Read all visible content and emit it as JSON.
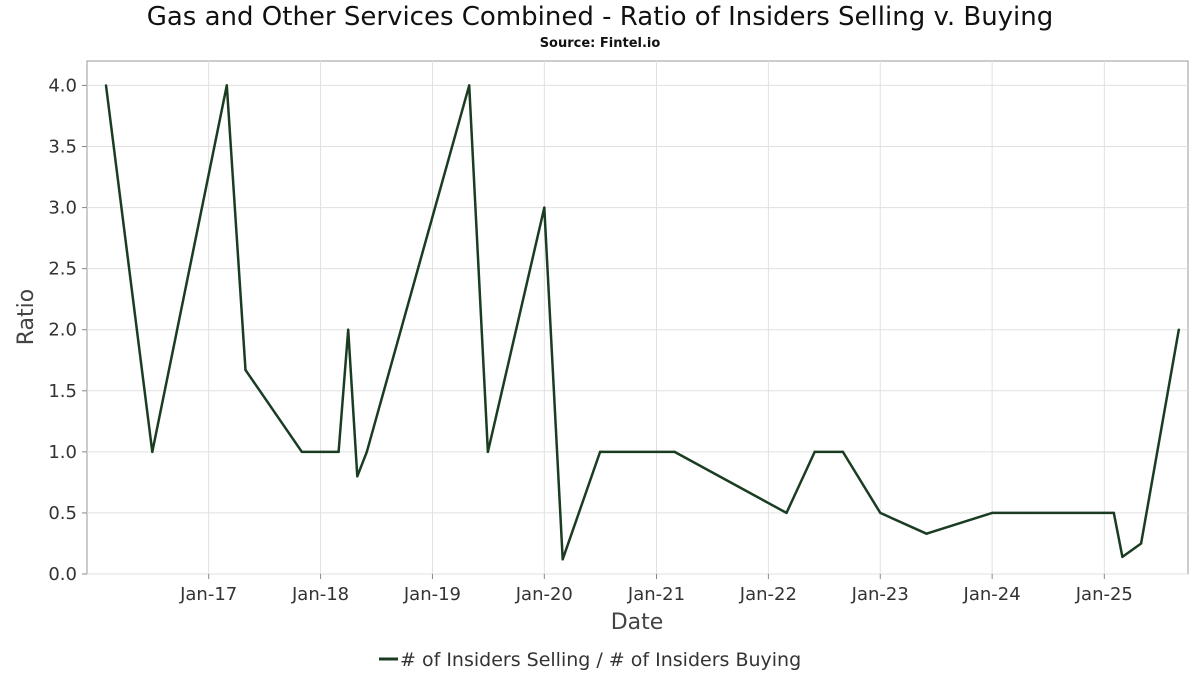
{
  "chart_data": {
    "type": "line",
    "title": "Gas and Other Services Combined - Ratio of Insiders Selling v. Buying",
    "subtitle": "Source: Fintel.io",
    "xlabel": "Date",
    "ylabel": "Ratio",
    "ylim": [
      0,
      4.2
    ],
    "xlim": [
      "2015-12-01",
      "2025-10-01"
    ],
    "grid": true,
    "legend_position": "bottom-center",
    "x_ticks": [
      {
        "date": "2017-01-01",
        "label": "Jan-17"
      },
      {
        "date": "2018-01-01",
        "label": "Jan-18"
      },
      {
        "date": "2019-01-01",
        "label": "Jan-19"
      },
      {
        "date": "2020-01-01",
        "label": "Jan-20"
      },
      {
        "date": "2021-01-01",
        "label": "Jan-21"
      },
      {
        "date": "2022-01-01",
        "label": "Jan-22"
      },
      {
        "date": "2023-01-01",
        "label": "Jan-23"
      },
      {
        "date": "2024-01-01",
        "label": "Jan-24"
      },
      {
        "date": "2025-01-01",
        "label": "Jan-25"
      }
    ],
    "y_ticks": [
      {
        "value": 0.0,
        "label": "0.0"
      },
      {
        "value": 0.5,
        "label": "0.5"
      },
      {
        "value": 1.0,
        "label": "1.0"
      },
      {
        "value": 1.5,
        "label": "1.5"
      },
      {
        "value": 2.0,
        "label": "2.0"
      },
      {
        "value": 2.5,
        "label": "2.5"
      },
      {
        "value": 3.0,
        "label": "3.0"
      },
      {
        "value": 3.5,
        "label": "3.5"
      },
      {
        "value": 4.0,
        "label": "4.0"
      }
    ],
    "series": [
      {
        "name": "# of Insiders Selling / # of Insiders Buying",
        "color": "#1a3d22",
        "points": [
          {
            "x": "2016-02-01",
            "y": 4.0
          },
          {
            "x": "2016-07-01",
            "y": 1.0
          },
          {
            "x": "2017-03-01",
            "y": 4.0
          },
          {
            "x": "2017-05-01",
            "y": 1.67
          },
          {
            "x": "2017-11-01",
            "y": 1.0
          },
          {
            "x": "2018-03-01",
            "y": 1.0
          },
          {
            "x": "2018-04-01",
            "y": 2.0
          },
          {
            "x": "2018-05-01",
            "y": 0.8
          },
          {
            "x": "2018-06-01",
            "y": 1.0
          },
          {
            "x": "2019-05-01",
            "y": 4.0
          },
          {
            "x": "2019-07-01",
            "y": 1.0
          },
          {
            "x": "2020-01-01",
            "y": 3.0
          },
          {
            "x": "2020-03-01",
            "y": 0.12
          },
          {
            "x": "2020-07-01",
            "y": 1.0
          },
          {
            "x": "2021-03-01",
            "y": 1.0
          },
          {
            "x": "2022-03-01",
            "y": 0.5
          },
          {
            "x": "2022-06-01",
            "y": 1.0
          },
          {
            "x": "2022-09-01",
            "y": 1.0
          },
          {
            "x": "2023-01-01",
            "y": 0.5
          },
          {
            "x": "2023-06-01",
            "y": 0.33
          },
          {
            "x": "2024-01-01",
            "y": 0.5
          },
          {
            "x": "2024-05-01",
            "y": 0.5
          },
          {
            "x": "2025-02-01",
            "y": 0.5
          },
          {
            "x": "2025-03-01",
            "y": 0.14
          },
          {
            "x": "2025-05-01",
            "y": 0.25
          },
          {
            "x": "2025-09-01",
            "y": 2.0
          }
        ]
      }
    ]
  }
}
